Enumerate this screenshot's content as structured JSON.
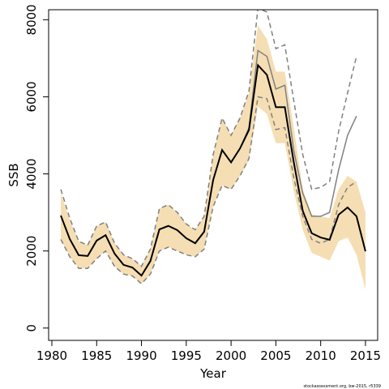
{
  "chart_data": {
    "type": "line",
    "xlabel": "Year",
    "ylabel": "SSB",
    "footer": "stockassessment.org, bw-2015, r5339",
    "x": [
      1981,
      1982,
      1983,
      1984,
      1985,
      1986,
      1987,
      1988,
      1989,
      1990,
      1991,
      1992,
      1993,
      1994,
      1995,
      1996,
      1997,
      1998,
      1999,
      2000,
      2001,
      2002,
      2003,
      2004,
      2005,
      2006,
      2007,
      2008,
      2009,
      2010,
      2011,
      2012,
      2013,
      2014,
      2015
    ],
    "band": {
      "color": "#f5deb3",
      "upper": [
        3500,
        2800,
        2250,
        2150,
        2650,
        2750,
        2200,
        1900,
        1800,
        1600,
        2050,
        3100,
        3200,
        3000,
        2700,
        2550,
        2900,
        4500,
        5450,
        5000,
        5450,
        6100,
        7850,
        7500,
        6650,
        6650,
        5200,
        3600,
        2950,
        2900,
        2850,
        3600,
        3950,
        3800,
        3000
      ],
      "lower": [
        2300,
        1850,
        1550,
        1550,
        1800,
        2000,
        1600,
        1400,
        1350,
        1150,
        1400,
        2000,
        2100,
        2000,
        1900,
        1850,
        2050,
        3150,
        3700,
        3600,
        3950,
        4350,
        5750,
        5550,
        4800,
        4800,
        3550,
        2550,
        1950,
        1850,
        1750,
        2250,
        2350,
        1900,
        1000
      ]
    },
    "series": [
      {
        "color": "#000000",
        "width": 2,
        "dashed": false,
        "values": [
          2920,
          2310,
          1890,
          1870,
          2270,
          2410,
          1930,
          1640,
          1570,
          1360,
          1740,
          2560,
          2650,
          2540,
          2330,
          2200,
          2500,
          3840,
          4620,
          4300,
          4660,
          5140,
          6820,
          6570,
          5730,
          5730,
          4300,
          3040,
          2460,
          2350,
          2290,
          2940,
          3130,
          2900,
          1990
        ]
      },
      {
        "color": "#808080",
        "width": 1.5,
        "dashed": false,
        "values": [
          2920,
          2310,
          1890,
          1870,
          2270,
          2410,
          1930,
          1640,
          1570,
          1360,
          1740,
          2560,
          2650,
          2540,
          2330,
          2200,
          2500,
          3840,
          4620,
          4300,
          4660,
          5200,
          7200,
          7050,
          6200,
          6300,
          4600,
          3500,
          2900,
          2900,
          3000,
          4100,
          5000,
          5500,
          null
        ]
      },
      {
        "color": "#808080",
        "width": 1.5,
        "dashed": true,
        "values": [
          3600,
          2850,
          2250,
          2150,
          2650,
          2750,
          2200,
          1900,
          1800,
          1600,
          2050,
          3100,
          3200,
          3000,
          2700,
          2550,
          2900,
          4500,
          5450,
          5000,
          5450,
          6150,
          8300,
          8200,
          7250,
          7350,
          5900,
          4500,
          3600,
          3650,
          3800,
          5100,
          6100,
          7050,
          null
        ]
      },
      {
        "color": "#808080",
        "width": 1.5,
        "dashed": true,
        "values": [
          2300,
          1850,
          1550,
          1550,
          1800,
          2000,
          1600,
          1400,
          1350,
          1150,
          1400,
          2000,
          2100,
          2000,
          1900,
          1850,
          2050,
          3150,
          3700,
          3600,
          3950,
          4400,
          6000,
          5950,
          5150,
          5200,
          3900,
          2900,
          2300,
          2200,
          2300,
          3200,
          3650,
          3800,
          null
        ]
      }
    ],
    "xlim": [
      1979.64,
      2016.36
    ],
    "xticks": [
      1980,
      1985,
      1990,
      1995,
      2000,
      2005,
      2010,
      2015
    ],
    "ylim": [
      -320,
      8260
    ],
    "yticks": [
      0,
      2000,
      4000,
      6000,
      8000
    ]
  }
}
